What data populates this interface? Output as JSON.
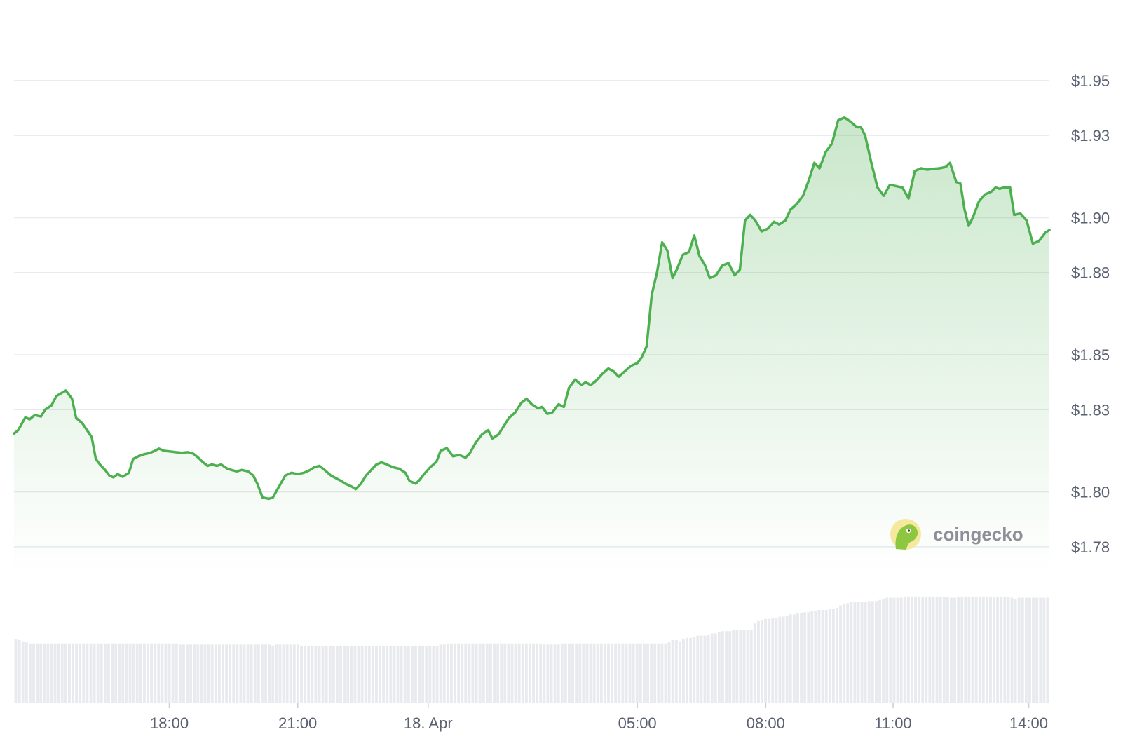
{
  "chart_data": {
    "type": "area",
    "y_unit_prefix": "$",
    "ylim": [
      1.77,
      1.963
    ],
    "y_ticks": [
      "$1.95",
      "$1.93",
      "$1.90",
      "$1.88",
      "$1.85",
      "$1.83",
      "$1.80",
      "$1.78"
    ],
    "y_tick_values": [
      1.95,
      1.93,
      1.9,
      1.88,
      1.85,
      1.83,
      1.8,
      1.78
    ],
    "x_ticks": [
      {
        "label": "18:00",
        "pos": 0.15
      },
      {
        "label": "21:00",
        "pos": 0.274
      },
      {
        "label": "18. Apr",
        "pos": 0.4
      },
      {
        "label": "05:00",
        "pos": 0.602
      },
      {
        "label": "08:00",
        "pos": 0.726
      },
      {
        "label": "11:00",
        "pos": 0.849
      },
      {
        "label": "14:00",
        "pos": 0.98
      }
    ],
    "grid": true,
    "line_color": "#4caf50",
    "fill_color": "#4caf50",
    "price_series": [
      [
        0.0,
        1.8213
      ],
      [
        0.004,
        1.8225
      ],
      [
        0.011,
        1.8272
      ],
      [
        0.015,
        1.8265
      ],
      [
        0.02,
        1.828
      ],
      [
        0.026,
        1.8275
      ],
      [
        0.03,
        1.83
      ],
      [
        0.036,
        1.8315
      ],
      [
        0.041,
        1.835
      ],
      [
        0.05,
        1.837
      ],
      [
        0.056,
        1.834
      ],
      [
        0.06,
        1.827
      ],
      [
        0.066,
        1.825
      ],
      [
        0.075,
        1.82
      ],
      [
        0.079,
        1.812
      ],
      [
        0.083,
        1.81
      ],
      [
        0.088,
        1.808
      ],
      [
        0.092,
        1.806
      ],
      [
        0.096,
        1.8053
      ],
      [
        0.1,
        1.8065
      ],
      [
        0.105,
        1.8055
      ],
      [
        0.111,
        1.807
      ],
      [
        0.115,
        1.812
      ],
      [
        0.12,
        1.813
      ],
      [
        0.126,
        1.8138
      ],
      [
        0.131,
        1.8142
      ],
      [
        0.136,
        1.815
      ],
      [
        0.14,
        1.8158
      ],
      [
        0.145,
        1.815
      ],
      [
        0.15,
        1.8148
      ],
      [
        0.156,
        1.8145
      ],
      [
        0.162,
        1.8143
      ],
      [
        0.168,
        1.8145
      ],
      [
        0.173,
        1.814
      ],
      [
        0.178,
        1.8125
      ],
      [
        0.182,
        1.811
      ],
      [
        0.187,
        1.8095
      ],
      [
        0.191,
        1.81
      ],
      [
        0.196,
        1.8095
      ],
      [
        0.2,
        1.81
      ],
      [
        0.206,
        1.8085
      ],
      [
        0.21,
        1.808
      ],
      [
        0.215,
        1.8075
      ],
      [
        0.22,
        1.808
      ],
      [
        0.226,
        1.8075
      ],
      [
        0.231,
        1.806
      ],
      [
        0.235,
        1.803
      ],
      [
        0.24,
        1.798
      ],
      [
        0.246,
        1.7975
      ],
      [
        0.25,
        1.798
      ],
      [
        0.256,
        1.802
      ],
      [
        0.262,
        1.806
      ],
      [
        0.268,
        1.807
      ],
      [
        0.274,
        1.8065
      ],
      [
        0.28,
        1.807
      ],
      [
        0.286,
        1.808
      ],
      [
        0.29,
        1.809
      ],
      [
        0.295,
        1.8095
      ],
      [
        0.3,
        1.808
      ],
      [
        0.306,
        1.806
      ],
      [
        0.311,
        1.805
      ],
      [
        0.316,
        1.804
      ],
      [
        0.32,
        1.803
      ],
      [
        0.326,
        1.802
      ],
      [
        0.33,
        1.801
      ],
      [
        0.335,
        1.803
      ],
      [
        0.34,
        1.806
      ],
      [
        0.345,
        1.808
      ],
      [
        0.35,
        1.81
      ],
      [
        0.355,
        1.8108
      ],
      [
        0.36,
        1.81
      ],
      [
        0.366,
        1.809
      ],
      [
        0.372,
        1.8085
      ],
      [
        0.378,
        1.807
      ],
      [
        0.382,
        1.804
      ],
      [
        0.388,
        1.803
      ],
      [
        0.392,
        1.8045
      ],
      [
        0.396,
        1.8065
      ],
      [
        0.402,
        1.809
      ],
      [
        0.408,
        1.811
      ],
      [
        0.412,
        1.815
      ],
      [
        0.418,
        1.816
      ],
      [
        0.424,
        1.813
      ],
      [
        0.43,
        1.8135
      ],
      [
        0.436,
        1.8125
      ],
      [
        0.44,
        1.814
      ],
      [
        0.446,
        1.818
      ],
      [
        0.452,
        1.821
      ],
      [
        0.458,
        1.8225
      ],
      [
        0.462,
        1.8195
      ],
      [
        0.468,
        1.821
      ],
      [
        0.473,
        1.824
      ],
      [
        0.478,
        1.827
      ],
      [
        0.484,
        1.829
      ],
      [
        0.49,
        1.8325
      ],
      [
        0.495,
        1.834
      ],
      [
        0.5,
        1.832
      ],
      [
        0.506,
        1.8305
      ],
      [
        0.51,
        1.831
      ],
      [
        0.515,
        1.8285
      ],
      [
        0.52,
        1.829
      ],
      [
        0.526,
        1.832
      ],
      [
        0.531,
        1.831
      ],
      [
        0.536,
        1.838
      ],
      [
        0.542,
        1.841
      ],
      [
        0.548,
        1.839
      ],
      [
        0.552,
        1.84
      ],
      [
        0.557,
        1.839
      ],
      [
        0.562,
        1.8405
      ],
      [
        0.568,
        1.843
      ],
      [
        0.574,
        1.845
      ],
      [
        0.579,
        1.844
      ],
      [
        0.584,
        1.842
      ],
      [
        0.59,
        1.844
      ],
      [
        0.596,
        1.846
      ],
      [
        0.602,
        1.847
      ],
      [
        0.606,
        1.849
      ],
      [
        0.611,
        1.853
      ],
      [
        0.616,
        1.872
      ],
      [
        0.621,
        1.88
      ],
      [
        0.626,
        1.891
      ],
      [
        0.631,
        1.888
      ],
      [
        0.636,
        1.878
      ],
      [
        0.64,
        1.881
      ],
      [
        0.646,
        1.8865
      ],
      [
        0.652,
        1.8875
      ],
      [
        0.657,
        1.8935
      ],
      [
        0.662,
        1.886
      ],
      [
        0.667,
        1.883
      ],
      [
        0.672,
        1.878
      ],
      [
        0.678,
        1.879
      ],
      [
        0.684,
        1.8825
      ],
      [
        0.69,
        1.8835
      ],
      [
        0.696,
        1.879
      ],
      [
        0.701,
        1.881
      ],
      [
        0.706,
        1.899
      ],
      [
        0.711,
        1.901
      ],
      [
        0.716,
        1.899
      ],
      [
        0.722,
        1.895
      ],
      [
        0.728,
        1.896
      ],
      [
        0.734,
        1.8985
      ],
      [
        0.739,
        1.8975
      ],
      [
        0.745,
        1.899
      ],
      [
        0.75,
        1.903
      ],
      [
        0.756,
        1.905
      ],
      [
        0.762,
        1.908
      ],
      [
        0.768,
        1.914
      ],
      [
        0.773,
        1.92
      ],
      [
        0.778,
        1.918
      ],
      [
        0.784,
        1.924
      ],
      [
        0.79,
        1.927
      ],
      [
        0.796,
        1.9355
      ],
      [
        0.802,
        1.9365
      ],
      [
        0.808,
        1.935
      ],
      [
        0.814,
        1.933
      ],
      [
        0.818,
        1.933
      ],
      [
        0.822,
        1.93
      ],
      [
        0.828,
        1.92
      ],
      [
        0.834,
        1.911
      ],
      [
        0.84,
        1.908
      ],
      [
        0.846,
        1.912
      ],
      [
        0.852,
        1.9115
      ],
      [
        0.858,
        1.911
      ],
      [
        0.864,
        1.907
      ],
      [
        0.87,
        1.917
      ],
      [
        0.876,
        1.918
      ],
      [
        0.882,
        1.9175
      ],
      [
        0.888,
        1.9178
      ],
      [
        0.894,
        1.918
      ],
      [
        0.9,
        1.9185
      ],
      [
        0.904,
        1.92
      ],
      [
        0.91,
        1.913
      ],
      [
        0.914,
        1.9125
      ],
      [
        0.918,
        1.903
      ],
      [
        0.922,
        1.897
      ],
      [
        0.926,
        1.9
      ],
      [
        0.932,
        1.906
      ],
      [
        0.938,
        1.9085
      ],
      [
        0.944,
        1.9095
      ],
      [
        0.948,
        1.911
      ],
      [
        0.952,
        1.9105
      ],
      [
        0.956,
        1.911
      ],
      [
        0.962,
        1.911
      ],
      [
        0.966,
        1.901
      ],
      [
        0.972,
        1.9015
      ],
      [
        0.978,
        1.899
      ],
      [
        0.984,
        1.8905
      ],
      [
        0.99,
        1.8915
      ],
      [
        0.996,
        1.8945
      ],
      [
        1.0,
        1.8955
      ]
    ],
    "volume_series": [
      0.57,
      0.56,
      0.55,
      0.54,
      0.53,
      0.53,
      0.53,
      0.53,
      0.53,
      0.53,
      0.53,
      0.53,
      0.53,
      0.53,
      0.53,
      0.53,
      0.53,
      0.53,
      0.53,
      0.53,
      0.53,
      0.53,
      0.53,
      0.53,
      0.53,
      0.53,
      0.53,
      0.53,
      0.53,
      0.53,
      0.53,
      0.53,
      0.53,
      0.53,
      0.53,
      0.53,
      0.53,
      0.53,
      0.53,
      0.53,
      0.53,
      0.53,
      0.53,
      0.53,
      0.53,
      0.53,
      0.52,
      0.52,
      0.52,
      0.52,
      0.52,
      0.52,
      0.52,
      0.52,
      0.52,
      0.52,
      0.52,
      0.52,
      0.52,
      0.52,
      0.52,
      0.52,
      0.52,
      0.52,
      0.52,
      0.52,
      0.52,
      0.52,
      0.52,
      0.52,
      0.52,
      0.52,
      0.51,
      0.52,
      0.52,
      0.52,
      0.52,
      0.52,
      0.52,
      0.52,
      0.51,
      0.51,
      0.51,
      0.51,
      0.51,
      0.51,
      0.51,
      0.51,
      0.51,
      0.51,
      0.51,
      0.51,
      0.51,
      0.51,
      0.51,
      0.51,
      0.51,
      0.51,
      0.51,
      0.51,
      0.51,
      0.51,
      0.51,
      0.51,
      0.51,
      0.51,
      0.51,
      0.51,
      0.51,
      0.51,
      0.51,
      0.51,
      0.51,
      0.51,
      0.51,
      0.51,
      0.51,
      0.51,
      0.51,
      0.52,
      0.52,
      0.53,
      0.53,
      0.53,
      0.53,
      0.53,
      0.53,
      0.53,
      0.53,
      0.53,
      0.53,
      0.53,
      0.53,
      0.53,
      0.53,
      0.53,
      0.53,
      0.53,
      0.53,
      0.53,
      0.53,
      0.53,
      0.53,
      0.53,
      0.53,
      0.53,
      0.53,
      0.53,
      0.52,
      0.52,
      0.52,
      0.52,
      0.52,
      0.53,
      0.53,
      0.53,
      0.53,
      0.53,
      0.53,
      0.53,
      0.53,
      0.53,
      0.53,
      0.53,
      0.53,
      0.53,
      0.53,
      0.53,
      0.53,
      0.53,
      0.53,
      0.53,
      0.53,
      0.53,
      0.53,
      0.53,
      0.53,
      0.53,
      0.53,
      0.53,
      0.53,
      0.53,
      0.53,
      0.54,
      0.56,
      0.56,
      0.55,
      0.57,
      0.58,
      0.58,
      0.59,
      0.6,
      0.6,
      0.6,
      0.61,
      0.62,
      0.62,
      0.63,
      0.64,
      0.64,
      0.64,
      0.65,
      0.65,
      0.65,
      0.65,
      0.65,
      0.65,
      0.71,
      0.73,
      0.74,
      0.75,
      0.75,
      0.76,
      0.76,
      0.77,
      0.77,
      0.78,
      0.79,
      0.79,
      0.8,
      0.8,
      0.81,
      0.81,
      0.82,
      0.82,
      0.83,
      0.83,
      0.83,
      0.84,
      0.84,
      0.85,
      0.87,
      0.88,
      0.89,
      0.9,
      0.9,
      0.9,
      0.9,
      0.9,
      0.91,
      0.91,
      0.91,
      0.92,
      0.93,
      0.94,
      0.94,
      0.94,
      0.94,
      0.94,
      0.95,
      0.95,
      0.95,
      0.95,
      0.95,
      0.95,
      0.95,
      0.95,
      0.95,
      0.95,
      0.95,
      0.95,
      0.95,
      0.94,
      0.94,
      0.95,
      0.95,
      0.95,
      0.95,
      0.95,
      0.95,
      0.95,
      0.95,
      0.95,
      0.95,
      0.95,
      0.95,
      0.95,
      0.95,
      0.95,
      0.94,
      0.93,
      0.94,
      0.94,
      0.94,
      0.94,
      0.94,
      0.94,
      0.94,
      0.94,
      0.94
    ]
  },
  "watermark": {
    "text": "coingecko",
    "icon": "gecko-logo-icon"
  }
}
